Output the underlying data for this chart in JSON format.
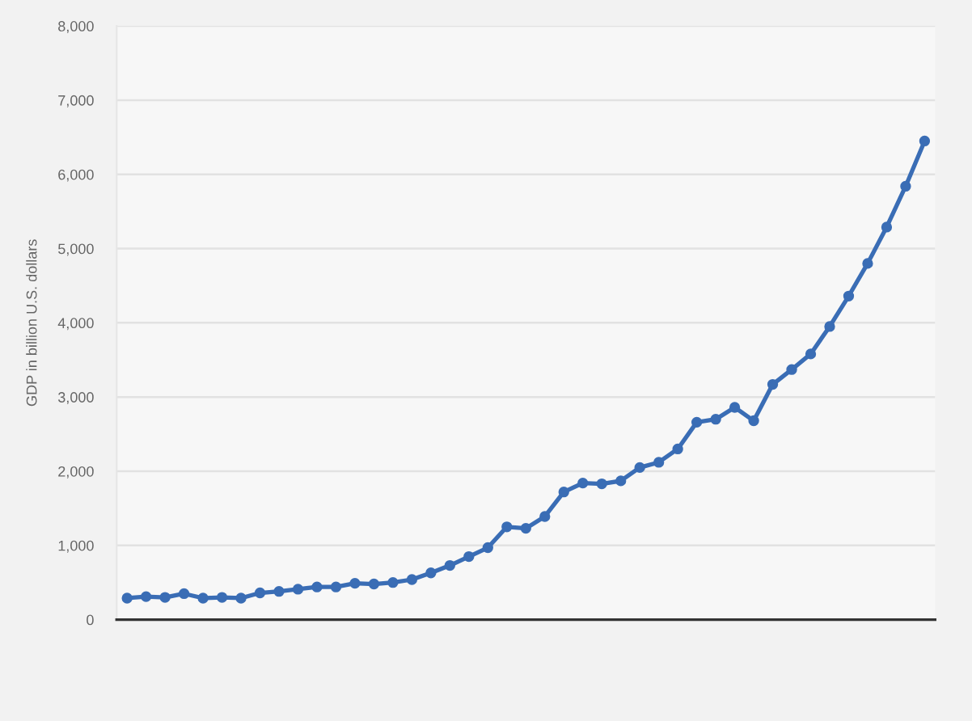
{
  "chart_data": {
    "type": "line",
    "ylabel": "GDP in billion U.S. dollars",
    "categories": [
      null,
      null,
      null,
      null,
      null,
      null,
      null,
      null,
      null,
      null,
      null,
      null,
      null,
      null,
      null,
      null,
      null,
      null,
      null,
      null,
      null,
      null,
      null,
      null,
      null,
      null,
      null,
      null,
      null,
      null,
      null,
      null,
      null,
      null,
      null,
      null,
      null,
      null,
      null,
      null,
      null,
      null,
      null
    ],
    "series": [
      {
        "color": "#3a6db5",
        "values": [
          290,
          310,
          300,
          350,
          290,
          300,
          290,
          360,
          380,
          410,
          440,
          440,
          490,
          480,
          500,
          540,
          630,
          730,
          850,
          970,
          1250,
          1230,
          1390,
          1720,
          1840,
          1830,
          1870,
          2050,
          2120,
          2300,
          2660,
          2700,
          2860,
          2680,
          3170,
          3370,
          3580,
          3950,
          4360,
          4800,
          5290,
          5840,
          6450
        ]
      }
    ],
    "ylim": [
      0,
      8000
    ],
    "yticks": [
      0,
      {
        "value": 1000,
        "label": "1,000"
      },
      {
        "value": 2000,
        "label": "2,000"
      },
      {
        "value": 3000,
        "label": "3,000"
      },
      {
        "value": 4000,
        "label": "4,000"
      },
      {
        "value": 5000,
        "label": "5,000"
      },
      {
        "value": 6000,
        "label": "6,000"
      },
      {
        "value": 7000,
        "label": "7,000"
      },
      {
        "value": 8000,
        "label": "8,000"
      }
    ],
    "grid": "y",
    "marker": "circle",
    "line_style": "solid",
    "tick_labels": "y"
  }
}
